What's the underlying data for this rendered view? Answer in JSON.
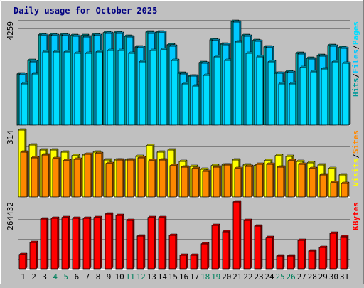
{
  "chart_data": {
    "type": "bar",
    "title": "Daily usage for October 2025",
    "categories": [
      "1",
      "2",
      "3",
      "4",
      "5",
      "6",
      "7",
      "8",
      "9",
      "10",
      "11",
      "12",
      "13",
      "14",
      "15",
      "16",
      "17",
      "18",
      "19",
      "20",
      "21",
      "22",
      "23",
      "24",
      "25",
      "26",
      "27",
      "28",
      "29",
      "30",
      "31"
    ],
    "weekend_days": [
      "4",
      "5",
      "11",
      "12",
      "18",
      "19",
      "25",
      "26"
    ],
    "panels": [
      {
        "id": "hits",
        "ymax_label": "4259",
        "ymax": 4259,
        "axis_labels": [
          "Pages",
          "Files",
          "Hits"
        ],
        "series": [
          {
            "name": "Hits",
            "color": "#009999",
            "values": [
              2108,
              2644,
              3696,
              3696,
              3696,
              3683,
              3683,
              3710,
              3802,
              3788,
              3643,
              3209,
              3815,
              3829,
              3285,
              2129,
              2027,
              2581,
              3512,
              3325,
              4259,
              3683,
              3473,
              3219,
              2144,
              2179,
              2949,
              2751,
              2869,
              3277,
              3175
            ]
          },
          {
            "name": "Files",
            "color": "#00c8ff",
            "values": [
              2081,
              2604,
              3669,
              3669,
              3669,
              3643,
              3630,
              3669,
              3775,
              3750,
              3603,
              3170,
              3775,
              3788,
              3246,
              2102,
              2001,
              2542,
              3483,
              3285,
              4220,
              3643,
              3433,
              3180,
              2119,
              2151,
              2914,
              2722,
              2830,
              3246,
              3141
            ]
          },
          {
            "name": "Pages",
            "color": "#00ddff",
            "values": [
              1700,
              2100,
              3000,
              3000,
              3000,
              2950,
              2950,
              3000,
              3050,
              3050,
              2950,
              2600,
              3050,
              3100,
              2650,
              1700,
              1600,
              2050,
              2800,
              2650,
              3400,
              2950,
              2800,
              2600,
              1700,
              1700,
              2350,
              2200,
              2300,
              2600,
              2550
            ]
          }
        ]
      },
      {
        "id": "visits",
        "ymax_label": "314",
        "ymax": 314,
        "axis_labels": [
          "Sites",
          "Visits"
        ],
        "series": [
          {
            "name": "Visits",
            "color": "#ffff00",
            "values": [
              314,
              243,
              220,
              220,
              211,
              193,
              197,
              211,
              173,
              173,
              173,
              189,
              239,
              211,
              220,
              168,
              144,
              131,
              148,
              150,
              173,
              150,
              148,
              169,
              193,
              189,
              167,
              162,
              150,
              133,
              105
            ]
          },
          {
            "name": "Sites",
            "color": "#ff8800",
            "values": [
              211,
              185,
              197,
              181,
              172,
              178,
              202,
              205,
              158,
              173,
              175,
              184,
              171,
              173,
              148,
              140,
              134,
              119,
              139,
              150,
              135,
              144,
              153,
              152,
              141,
              170,
              153,
              132,
              105,
              66,
              64
            ]
          }
        ]
      },
      {
        "id": "kbytes",
        "ymax_label": "264432",
        "ymax": 264432,
        "axis_labels": [
          "KBytes"
        ],
        "series": [
          {
            "name": "KBytes",
            "color": "#ff0000",
            "values": [
              56320,
              104345,
              196124,
              200263,
              203090,
              200263,
              200263,
              203090,
              215263,
              211263,
              192318,
              129089,
              203090,
              203090,
              133263,
              53474,
              53474,
              98320,
              172120,
              145090,
              264432,
              192318,
              167630,
              123090,
              50530,
              50530,
              113374,
              71120,
              84670,
              139263,
              127090
            ]
          }
        ]
      }
    ]
  },
  "colors": {
    "background": "#c0c0c0",
    "border_dark": "#808080",
    "border_light": "#ffffff",
    "title": "#000080",
    "weekday_label": "#000000",
    "weekend_label": "#00805c",
    "grid": "#808080"
  }
}
